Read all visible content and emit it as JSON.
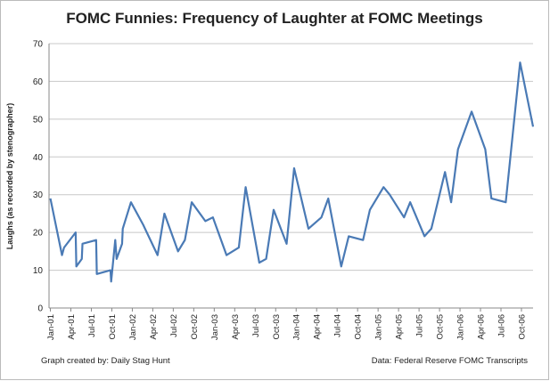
{
  "chart_data": {
    "type": "line",
    "title": "FOMC Funnies: Frequency of Laughter at FOMC Meetings",
    "y_label": "Laughs (as recorded by stenographer)",
    "footer_left": "Graph created by: Daily Stag Hunt",
    "footer_right": "Data: Federal Reserve FOMC Transcripts",
    "x": [
      0,
      1.7,
      2,
      3.7,
      3.8,
      4.6,
      4.7,
      6.7,
      6.8,
      8.8,
      8.9,
      9.5,
      9.7,
      10.5,
      10.6,
      11.8,
      13.6,
      15.7,
      16.7,
      18.7,
      19.7,
      20.7,
      22.7,
      23.8,
      25.8,
      27.6,
      28.6,
      30.6,
      31.6,
      32.7,
      34.6,
      35.7,
      37.8,
      39.7,
      40.7,
      42.6,
      43.7,
      45.8,
      46.8,
      48.8,
      49.7,
      51.8,
      52.7,
      54.8,
      55.8,
      57.8,
      58.7,
      59.7,
      61.7,
      63.7,
      64.6,
      66.7,
      68.8,
      70.7
    ],
    "series": [
      {
        "name": "Laughs",
        "color": "#4a7ab5",
        "values": [
          29,
          14,
          16,
          20,
          11,
          13,
          17,
          18,
          9,
          10,
          7,
          18,
          13,
          17,
          21,
          28,
          22,
          14,
          25,
          15,
          18,
          28,
          23,
          24,
          14,
          16,
          32,
          12,
          13,
          26,
          17,
          37,
          21,
          24,
          29,
          11,
          19,
          18,
          26,
          32,
          30,
          24,
          28,
          19,
          21,
          36,
          28,
          42,
          52,
          42,
          29,
          28,
          65,
          48
        ]
      }
    ],
    "xlim": [
      -0.2,
      70.7
    ],
    "xticks": [
      {
        "value": 0,
        "label": "Jan-01"
      },
      {
        "value": 3,
        "label": "Apr-01"
      },
      {
        "value": 6,
        "label": "Jul-01"
      },
      {
        "value": 9,
        "label": "Oct-01"
      },
      {
        "value": 12,
        "label": "Jan-02"
      },
      {
        "value": 15,
        "label": "Apr-02"
      },
      {
        "value": 18,
        "label": "Jul-02"
      },
      {
        "value": 21,
        "label": "Oct-02"
      },
      {
        "value": 24,
        "label": "Jan-03"
      },
      {
        "value": 27,
        "label": "Apr-03"
      },
      {
        "value": 30,
        "label": "Jul-03"
      },
      {
        "value": 33,
        "label": "Oct-03"
      },
      {
        "value": 36,
        "label": "Jan-04"
      },
      {
        "value": 39,
        "label": "Apr-04"
      },
      {
        "value": 42,
        "label": "Jul-04"
      },
      {
        "value": 45,
        "label": "Oct-04"
      },
      {
        "value": 48,
        "label": "Jan-05"
      },
      {
        "value": 51,
        "label": "Apr-05"
      },
      {
        "value": 54,
        "label": "Jul-05"
      },
      {
        "value": 57,
        "label": "Oct-05"
      },
      {
        "value": 60,
        "label": "Jan-06"
      },
      {
        "value": 63,
        "label": "Apr-06"
      },
      {
        "value": 66,
        "label": "Jul-06"
      },
      {
        "value": 69,
        "label": "Oct-06"
      }
    ],
    "ylim": [
      0,
      70
    ],
    "yticks": [
      0,
      10,
      20,
      30,
      40,
      50,
      60,
      70
    ],
    "grid": true
  }
}
